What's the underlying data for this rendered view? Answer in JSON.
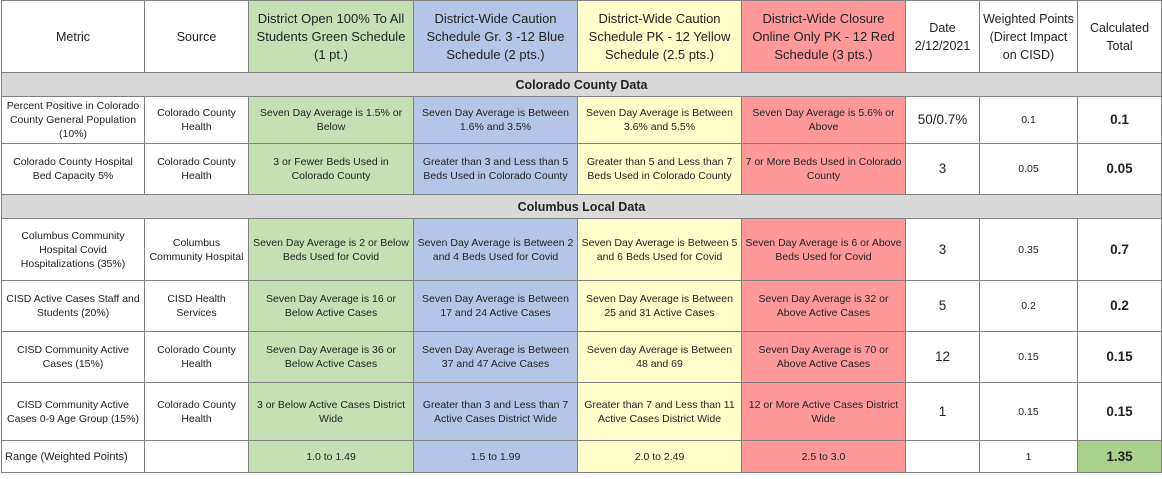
{
  "header": {
    "metric": "Metric",
    "source": "Source",
    "green": "District Open 100% To All Students Green Schedule (1 pt.)",
    "blue": "District-Wide Caution Schedule Gr. 3 -12 Blue Schedule (2 pts.)",
    "yellow": "District-Wide Caution Schedule PK - 12 Yellow Schedule (2.5 pts.)",
    "red": "District-Wide Closure Online Only PK - 12 Red Schedule (3 pts.)",
    "date": "Date 2/12/2021",
    "weighted": "Weighted Points (Direct Impact on CISD)",
    "total": "Calculated Total"
  },
  "sections": {
    "county": "Colorado County Data",
    "local": "Columbus Local Data"
  },
  "rows": [
    {
      "metric": "Percent Positive in Colorado County General Population (10%)",
      "source": "Colorado County Health",
      "green": "Seven Day Average is 1.5% or Below",
      "blue": "Seven Day Average is Between 1.6% and 3.5%",
      "yellow": "Seven Day Average is Between 3.6% and 5.5%",
      "red": "Seven Day Average is 5.6% or Above",
      "value": "50/0.7%",
      "weight": "0.1",
      "total": "0.1"
    },
    {
      "metric": "Colorado County Hospital Bed Capacity 5%",
      "source": "Colorado County Health",
      "green": "3 or Fewer Beds Used in Colorado County",
      "blue": "Greater than 3 and Less than 5 Beds Used in Colorado County",
      "yellow": "Greater than 5 and Less than 7 Beds Used in Colorado County",
      "red": "7 or More Beds Used in Colorado County",
      "value": "3",
      "weight": "0.05",
      "total": "0.05"
    },
    {
      "metric": "Columbus Community Hospital Covid Hospitalizations (35%)",
      "source": "Columbus Community Hospital",
      "green": "Seven Day Average is  2 or Below Beds Used for Covid",
      "blue": "Seven Day Average is Between 2 and 4 Beds Used for Covid",
      "yellow": "Seven Day Average is Between 5 and 6 Beds Used for Covid",
      "red": "Seven Day Average is 6 or Above Beds Used for Covid",
      "value": "3",
      "weight": "0.35",
      "total": "0.7"
    },
    {
      "metric": "CISD Active Cases Staff and Students (20%)",
      "source": "CISD Health Services",
      "green": "Seven Day Average is 16 or Below Active Cases",
      "blue": "Seven Day Average is Between 17 and 24 Active Cases",
      "yellow": "Seven Day Average is Between 25 and 31 Active Cases",
      "red": "Seven Day Average is 32 or Above Active Cases",
      "value": "5",
      "weight": "0.2",
      "total": "0.2"
    },
    {
      "metric": "CISD Community Active Cases (15%)",
      "source": "Colorado County Health",
      "green": "Seven Day Average is 36 or Below Active Cases",
      "blue": "Seven Day Average is Between 37 and 47 Acive Cases",
      "yellow": "Seven day Average is Between 48 and 69",
      "red": "Seven Day Average is 70 or Above Active Cases",
      "value": "12",
      "weight": "0.15",
      "total": "0.15"
    },
    {
      "metric": "CISD Community Active Cases 0-9 Age Group (15%)",
      "source": "Colorado County Health",
      "green": "3 or Below Active Cases District Wide",
      "blue": "Greater than 3 and Less than 7 Active Cases District Wide",
      "yellow": "Greater than 7 and Less than 11 Active Cases District Wide",
      "red": "12 or More Active Cases District Wide",
      "value": "1",
      "weight": "0.15",
      "total": "0.15"
    }
  ],
  "range": {
    "label": "Range (Weighted Points)",
    "source": "",
    "green": "1.0 to 1.49",
    "blue": "1.5 to 1.99",
    "yellow": "2.0 to 2.49",
    "red": "2.5 to 3.0",
    "value": "",
    "weight": "1",
    "total": "1.35"
  }
}
